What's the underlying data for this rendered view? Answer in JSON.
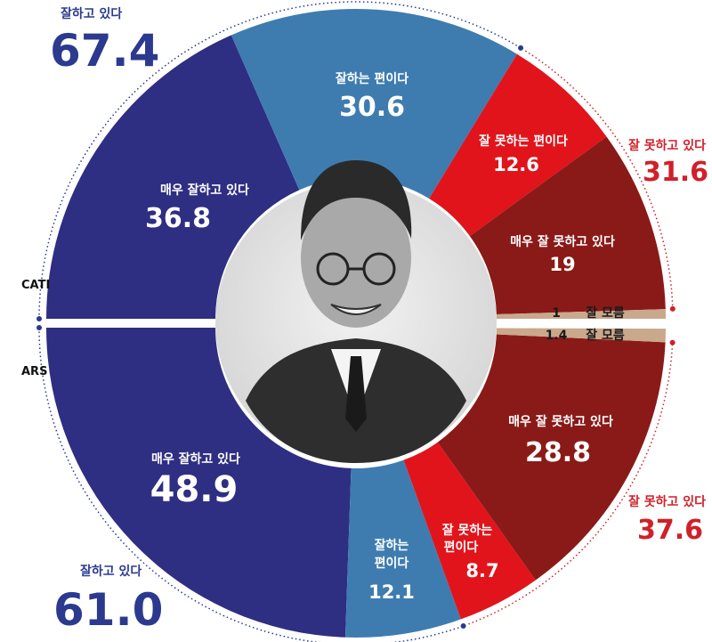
{
  "chart_data": {
    "type": "pie",
    "colors": {
      "blue_dark": "#2e2e82",
      "blue_light": "#3e7cb0",
      "red_bright": "#e1141c",
      "red_dark": "#8a1a18",
      "unsure": "#c9a88c",
      "total_blue": "#2b3a8f",
      "total_red": "#d0202a"
    },
    "groups": [
      {
        "name": "CATI",
        "slices": [
          {
            "label": "매우 잘하고 있다",
            "value": 36.8
          },
          {
            "label": "잘하는 편이다",
            "value": 30.6
          },
          {
            "label": "잘 못하는 편이다",
            "value": 12.6
          },
          {
            "label": "매우 잘 못하고 있다",
            "value": 19.0
          },
          {
            "label": "잘 모름",
            "value": 1.0
          }
        ],
        "totals": {
          "positive": {
            "label": "잘하고 있다",
            "value": "67.4"
          },
          "negative": {
            "label": "잘 못하고 있다",
            "value": "31.6"
          }
        }
      },
      {
        "name": "ARS",
        "slices": [
          {
            "label": "매우 잘하고 있다",
            "value": 48.9
          },
          {
            "label": "잘하는 편이다",
            "value": 12.1
          },
          {
            "label": "잘 못하는 편이다",
            "value": 8.7
          },
          {
            "label": "매우 잘 못하고 있다",
            "value": 28.8
          },
          {
            "label": "잘 모름",
            "value": 1.4
          }
        ],
        "totals": {
          "positive": {
            "label": "잘하고 있다",
            "value": "61.0"
          },
          "negative": {
            "label": "잘 못하고 있다",
            "value": "37.6"
          }
        }
      }
    ],
    "arsLabels": {
      "positive_lean": [
        "잘하는",
        "편이다"
      ],
      "negative_lean": [
        "잘 못하는",
        "편이다"
      ]
    }
  }
}
